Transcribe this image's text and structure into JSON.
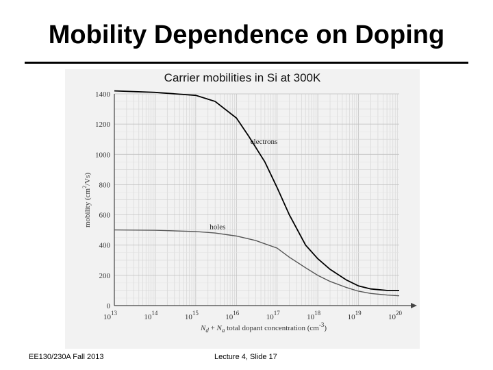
{
  "slide": {
    "title": "Mobility Dependence on Doping",
    "footer_left": "EE130/230A Fall 2013",
    "footer_center": "Lecture 4, Slide 17"
  },
  "chart_data": {
    "type": "line",
    "title": "Carrier mobilities in Si at 300K",
    "xlabel": "N_d + N_a total dopant concentration (cm^-3)",
    "ylabel": "mobility (cm^2/Vs)",
    "xscale": "log",
    "xlim": [
      10000000000000.0,
      1e+20
    ],
    "ylim": [
      0,
      1400
    ],
    "x_ticks": [
      "10^13",
      "10^14",
      "10^15",
      "10^16",
      "10^17",
      "10^18",
      "10^19",
      "10^20"
    ],
    "y_ticks": [
      "0",
      "200",
      "400",
      "600",
      "800",
      "1000",
      "1200",
      "1400"
    ],
    "grid": true,
    "series": [
      {
        "name": "electrons",
        "color": "#000000",
        "x": [
          10000000000000.0,
          100000000000000.0,
          1000000000000000.0,
          3000000000000000.0,
          1e+16,
          2e+16,
          5e+16,
          1e+17,
          2e+17,
          5e+17,
          1e+18,
          2e+18,
          5e+18,
          1e+19,
          2e+19,
          5e+19,
          1e+20
        ],
        "y": [
          1420,
          1410,
          1390,
          1350,
          1240,
          1120,
          950,
          780,
          600,
          400,
          310,
          240,
          170,
          130,
          110,
          100,
          100
        ]
      },
      {
        "name": "holes",
        "color": "#555555",
        "x": [
          10000000000000.0,
          100000000000000.0,
          1000000000000000.0,
          3000000000000000.0,
          1e+16,
          3e+16,
          1e+17,
          2e+17,
          5e+17,
          1e+18,
          2e+18,
          5e+18,
          1e+19,
          2e+19,
          5e+19,
          1e+20
        ],
        "y": [
          500,
          498,
          490,
          480,
          460,
          430,
          380,
          320,
          250,
          200,
          160,
          120,
          95,
          80,
          70,
          65
        ]
      }
    ]
  }
}
